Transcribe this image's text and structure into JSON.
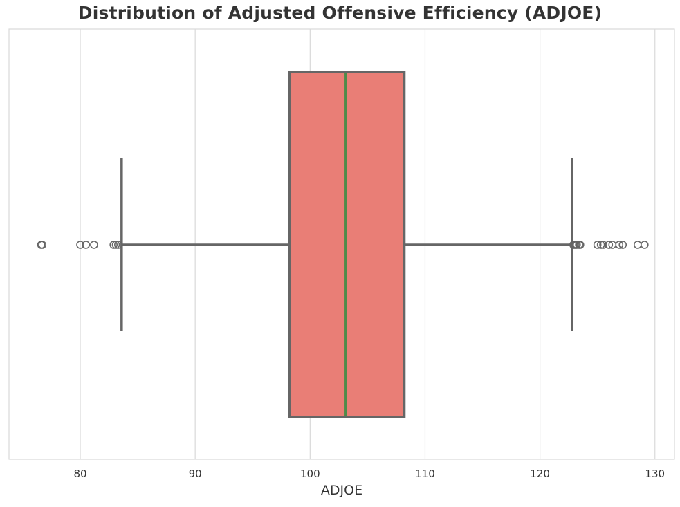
{
  "chart_data": {
    "type": "box",
    "title": "Distribution of Adjusted Offensive Efficiency (ADJOE)",
    "xlabel": "ADJOE",
    "ylabel": "",
    "xlim": [
      73.8,
      131.7
    ],
    "xticks": [
      80,
      90,
      100,
      110,
      120,
      130
    ],
    "grid": "vertical",
    "colors": {
      "box_fill": "#E97E76",
      "edge": "#666666",
      "median": "#4E8B4A",
      "grid": "#D9D9D9"
    },
    "box": {
      "q1": 98.2,
      "median": 103.1,
      "q3": 108.2,
      "whisker_low": 83.6,
      "whisker_high": 122.8,
      "outliers": [
        76.6,
        76.7,
        80.0,
        80.5,
        81.2,
        82.9,
        83.1,
        83.3,
        122.9,
        123.0,
        123.1,
        123.2,
        123.4,
        123.5,
        125.0,
        125.3,
        125.5,
        126.0,
        126.3,
        126.9,
        127.2,
        128.5,
        129.1
      ]
    }
  }
}
